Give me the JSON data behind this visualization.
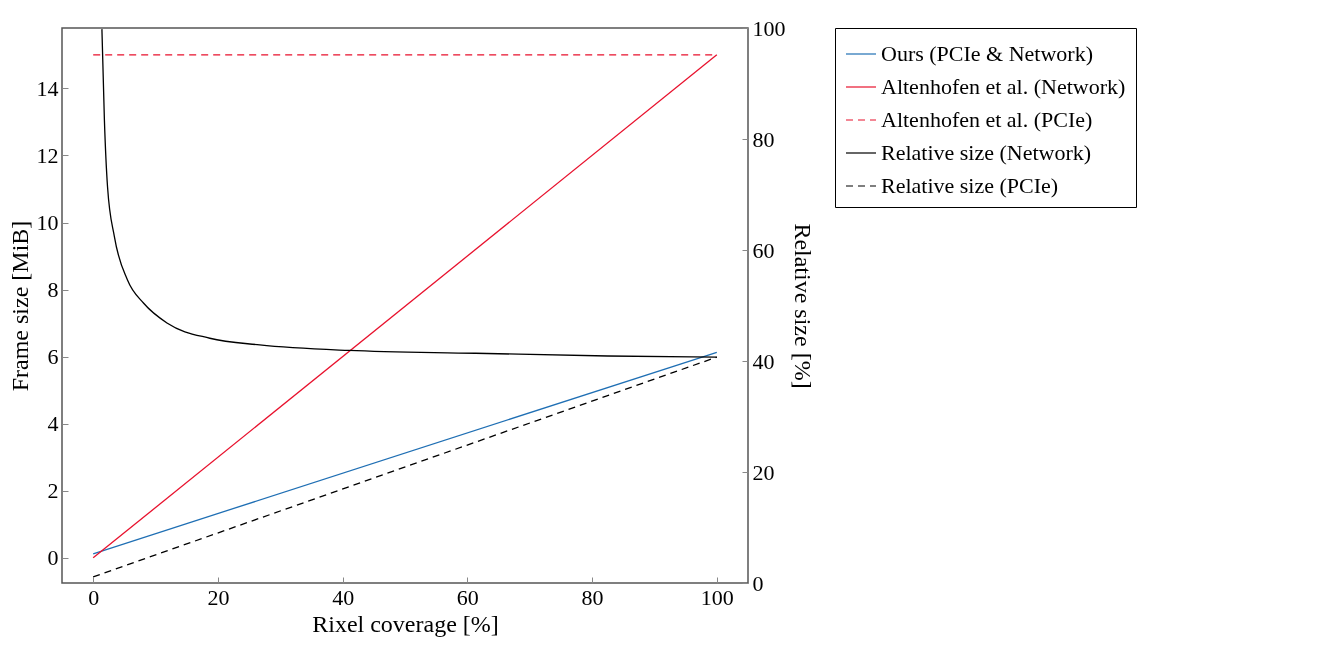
{
  "chart_data": {
    "type": "line",
    "xlabel": "Rixel coverage [%]",
    "ylabel": "Frame size [MiB]",
    "y2label": "Relative size [%]",
    "xlim": [
      -5,
      105
    ],
    "xticks": [
      0,
      20,
      40,
      60,
      80,
      100
    ],
    "ylim": [
      -0.75,
      15.8
    ],
    "yticks": [
      0,
      2,
      4,
      6,
      8,
      10,
      12,
      14
    ],
    "y2lim": [
      0,
      100
    ],
    "y2ticks": [
      0,
      20,
      40,
      60,
      80,
      100
    ],
    "legend": "right",
    "grid": false,
    "series": [
      {
        "name": "Ours (PCIe & Network)",
        "color": "#1f6fb4",
        "x": [
          0,
          100
        ],
        "values": [
          0.12,
          6.13
        ]
      },
      {
        "name": "Altenhofen et al. (Network)",
        "color": "#e8112d",
        "x": [
          0,
          100
        ],
        "values": [
          0,
          15
        ]
      },
      {
        "name": "Altenhofen et al. (PCIe)",
        "color": "#e8112d",
        "line_style": "dashed",
        "x": [
          0,
          100
        ],
        "values": [
          15,
          15
        ]
      },
      {
        "name": "Relative size (Network)",
        "color": "#000000",
        "axis": "y2",
        "x": [
          1.4,
          1.8,
          2.3,
          3.4,
          5.5,
          8.1,
          11.9,
          18.7,
          26.7,
          41,
          61.3,
          82.5,
          100
        ],
        "values": [
          99.8,
          83.4,
          71.4,
          62.4,
          54.6,
          50.4,
          46.8,
          44.1,
          42.9,
          41.9,
          41.4,
          40.9,
          40.7
        ]
      },
      {
        "name": "Relative size (PCIe)",
        "color": "#000000",
        "axis": "y2",
        "line_style": "dashed",
        "x": [
          0,
          100
        ],
        "values": [
          1.1,
          40.7
        ]
      }
    ]
  }
}
